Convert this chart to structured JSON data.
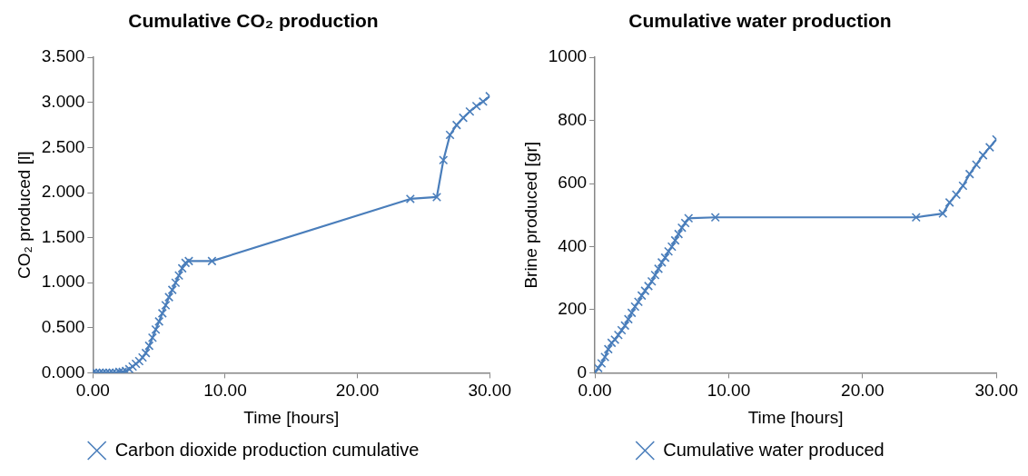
{
  "chart_data": [
    {
      "type": "line",
      "title": "Cumulative CO₂ production",
      "xlabel": "Time [hours]",
      "ylabel": "CO₂ produced [l]",
      "marker": "cross",
      "line_style": "solid",
      "grid": false,
      "legend": "bottom",
      "xlim": [
        0,
        30
      ],
      "xticks": [
        {
          "value": 0,
          "label": "0.00"
        },
        {
          "value": 10,
          "label": "10.00"
        },
        {
          "value": 20,
          "label": "20.00"
        },
        {
          "value": 30,
          "label": "30.00"
        }
      ],
      "ylim": [
        0,
        3.5
      ],
      "yticks": [
        {
          "value": 0,
          "label": "0.000"
        },
        {
          "value": 0.5,
          "label": "0.500"
        },
        {
          "value": 1,
          "label": "1.000"
        },
        {
          "value": 1.5,
          "label": "1.500"
        },
        {
          "value": 2,
          "label": "2.000"
        },
        {
          "value": 2.5,
          "label": "2.500"
        },
        {
          "value": 3,
          "label": "3.000"
        },
        {
          "value": 3.5,
          "label": "3.500"
        }
      ],
      "series": [
        {
          "name": "Carbon dioxide production cumulative",
          "color": "#4a7ebb",
          "x": [
            0,
            0.25,
            0.5,
            0.75,
            1,
            1.25,
            1.5,
            1.75,
            2,
            2.25,
            2.5,
            2.75,
            3,
            3.25,
            3.5,
            3.75,
            4,
            4.25,
            4.5,
            4.75,
            5,
            5.25,
            5.5,
            5.75,
            6,
            6.25,
            6.5,
            6.75,
            7,
            7.25,
            9,
            24,
            26,
            26.5,
            27,
            27.5,
            28,
            28.5,
            29,
            29.5,
            30
          ],
          "values": [
            0,
            0,
            0,
            0,
            0,
            0,
            0,
            0,
            0.01,
            0.01,
            0.02,
            0.04,
            0.07,
            0.1,
            0.13,
            0.17,
            0.22,
            0.3,
            0.39,
            0.48,
            0.57,
            0.66,
            0.75,
            0.84,
            0.92,
            1.0,
            1.08,
            1.16,
            1.22,
            1.24,
            1.24,
            1.93,
            1.95,
            2.36,
            2.64,
            2.75,
            2.83,
            2.9,
            2.96,
            3.01,
            3.07
          ]
        }
      ]
    },
    {
      "type": "line",
      "title": "Cumulative water production",
      "xlabel": "Time [hours]",
      "ylabel": "Brine produced [gr]",
      "marker": "cross",
      "line_style": "solid",
      "grid": false,
      "legend": "bottom",
      "xlim": [
        0,
        30
      ],
      "xticks": [
        {
          "value": 0,
          "label": "0.00"
        },
        {
          "value": 10,
          "label": "10.00"
        },
        {
          "value": 20,
          "label": "20.00"
        },
        {
          "value": 30,
          "label": "30.00"
        }
      ],
      "ylim": [
        0,
        1000
      ],
      "yticks": [
        0,
        200,
        400,
        600,
        800,
        1000
      ],
      "series": [
        {
          "name": "Cumulative water produced",
          "color": "#4a7ebb",
          "x": [
            0,
            0.25,
            0.5,
            0.75,
            1,
            1.25,
            1.5,
            1.75,
            2,
            2.25,
            2.5,
            2.75,
            3,
            3.25,
            3.5,
            3.75,
            4,
            4.25,
            4.5,
            4.75,
            5,
            5.25,
            5.5,
            5.75,
            6,
            6.25,
            6.5,
            6.75,
            7,
            9,
            24,
            26,
            26.5,
            27,
            27.5,
            28,
            28.5,
            29,
            29.5,
            30
          ],
          "values": [
            0,
            15,
            30,
            50,
            75,
            95,
            105,
            120,
            135,
            150,
            170,
            190,
            210,
            225,
            245,
            260,
            275,
            290,
            310,
            330,
            350,
            365,
            385,
            400,
            420,
            440,
            460,
            475,
            490,
            493,
            493,
            505,
            540,
            565,
            593,
            630,
            660,
            690,
            715,
            740
          ]
        }
      ]
    }
  ]
}
